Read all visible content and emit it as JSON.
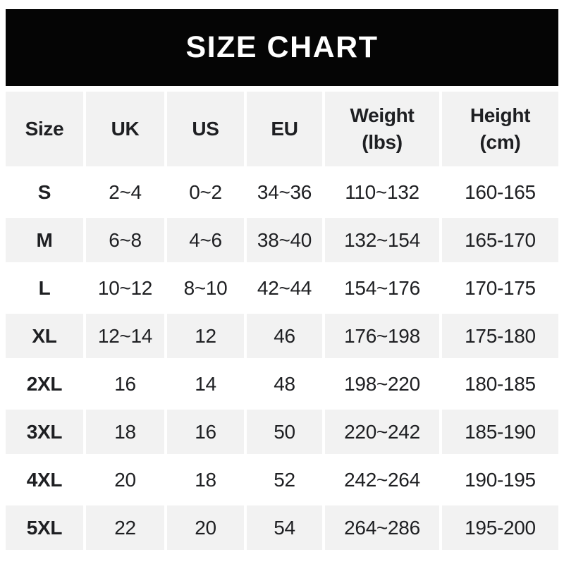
{
  "banner": {
    "title": "SIZE CHART"
  },
  "colors": {
    "banner_bg": "#050505",
    "banner_text": "#ffffff",
    "cell_shade": "#f2f2f2",
    "cell_plain": "#ffffff",
    "text": "#1e1f22"
  },
  "display_headers": [
    "Size",
    "UK",
    "US",
    "EU",
    "Weight\n(lbs)",
    "Height\n(cm)"
  ],
  "chart_data": {
    "type": "table",
    "title": "SIZE CHART",
    "columns": [
      "Size",
      "UK",
      "US",
      "EU",
      "Weight (lbs)",
      "Height (cm)"
    ],
    "rows": [
      [
        "S",
        "2~4",
        "0~2",
        "34~36",
        "110~132",
        "160-165"
      ],
      [
        "M",
        "6~8",
        "4~6",
        "38~40",
        "132~154",
        "165-170"
      ],
      [
        "L",
        "10~12",
        "8~10",
        "42~44",
        "154~176",
        "170-175"
      ],
      [
        "XL",
        "12~14",
        "12",
        "46",
        "176~198",
        "175-180"
      ],
      [
        "2XL",
        "16",
        "14",
        "48",
        "198~220",
        "180-185"
      ],
      [
        "3XL",
        "18",
        "16",
        "50",
        "220~242",
        "185-190"
      ],
      [
        "4XL",
        "20",
        "18",
        "52",
        "242~264",
        "190-195"
      ],
      [
        "5XL",
        "22",
        "20",
        "54",
        "264~286",
        "195-200"
      ]
    ]
  }
}
